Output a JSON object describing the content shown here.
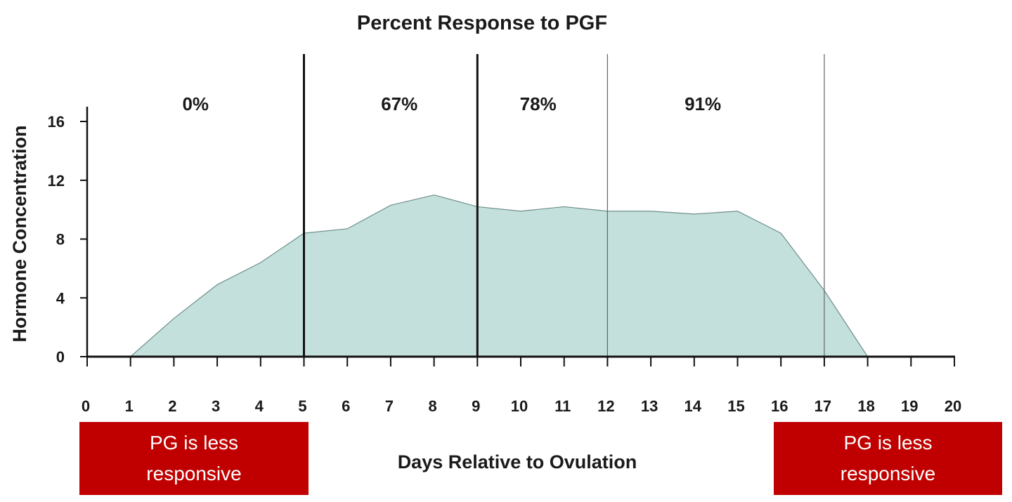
{
  "chart_data": {
    "type": "area",
    "title": "Percent Response to PGF",
    "xlabel": "Days Relative to Ovulation",
    "ylabel": "Hormone Concentration",
    "xlim": [
      0,
      20
    ],
    "ylim": [
      0,
      17
    ],
    "x_ticks": [
      0,
      1,
      2,
      3,
      4,
      5,
      6,
      7,
      8,
      9,
      10,
      11,
      12,
      13,
      14,
      15,
      16,
      17,
      18,
      19,
      20
    ],
    "y_ticks": [
      0,
      4,
      8,
      12,
      16
    ],
    "x": [
      1,
      2,
      3,
      4,
      5,
      6,
      7,
      8,
      9,
      10,
      11,
      12,
      13,
      14,
      15,
      16,
      17,
      18
    ],
    "values": [
      0,
      2.6,
      4.9,
      6.4,
      8.4,
      8.7,
      10.3,
      11.0,
      10.2,
      9.9,
      10.2,
      9.9,
      9.9,
      9.7,
      9.9,
      8.4,
      4.5,
      0
    ],
    "fill_color": "#c4e0dc",
    "grid": false,
    "dividers": [
      {
        "x": 5,
        "style": "thick"
      },
      {
        "x": 9,
        "style": "thick"
      },
      {
        "x": 12,
        "style": "thin"
      },
      {
        "x": 17,
        "style": "thin"
      }
    ],
    "region_labels": [
      {
        "label": "0%",
        "x": 2.5
      },
      {
        "label": "67%",
        "x": 7.2
      },
      {
        "label": "78%",
        "x": 10.4
      },
      {
        "label": "91%",
        "x": 14.2
      }
    ]
  },
  "notes": {
    "left": {
      "line1": "PG is less",
      "line2": "responsive",
      "color": "#c00000"
    },
    "right": {
      "line1": "PG is less",
      "line2": "responsive",
      "color": "#c00000"
    }
  }
}
